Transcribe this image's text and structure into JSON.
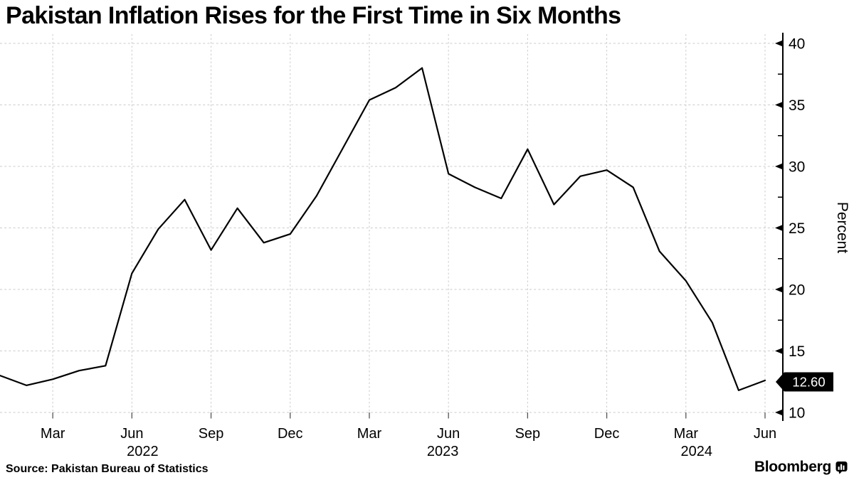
{
  "title": "Pakistan Inflation Rises for the First Time in Six Months",
  "source": "Source: Pakistan Bureau of Statistics",
  "branding": {
    "wordmark": "Bloomberg",
    "icon": "bar-chart-bubble-icon"
  },
  "chart_data": {
    "type": "line",
    "title": "Pakistan Inflation Rises for the First Time in Six Months",
    "xlabel": "",
    "ylabel": "Percent",
    "ylim": [
      10,
      40
    ],
    "yticks": [
      10,
      15,
      20,
      25,
      30,
      35,
      40
    ],
    "y_minor_tick_step": 2.5,
    "grid": true,
    "legend_position": "none",
    "line_color": "#000000",
    "grid_color": "#cbcbcb",
    "tag_bg": "#000000",
    "tag_text_color": "#ffffff",
    "x": [
      "Jan 2022",
      "Feb 2022",
      "Mar 2022",
      "Apr 2022",
      "May 2022",
      "Jun 2022",
      "Jul 2022",
      "Aug 2022",
      "Sep 2022",
      "Oct 2022",
      "Nov 2022",
      "Dec 2022",
      "Jan 2023",
      "Feb 2023",
      "Mar 2023",
      "Apr 2023",
      "May 2023",
      "Jun 2023",
      "Jul 2023",
      "Aug 2023",
      "Sep 2023",
      "Oct 2023",
      "Nov 2023",
      "Dec 2023",
      "Jan 2024",
      "Feb 2024",
      "Mar 2024",
      "Apr 2024",
      "May 2024",
      "Jun 2024"
    ],
    "values": [
      13.0,
      12.2,
      12.7,
      13.4,
      13.8,
      21.3,
      24.9,
      27.3,
      23.2,
      26.6,
      23.8,
      24.5,
      27.6,
      31.5,
      35.4,
      36.4,
      38.0,
      29.4,
      28.3,
      27.4,
      31.4,
      26.9,
      29.2,
      29.7,
      28.3,
      23.1,
      20.7,
      17.3,
      11.8,
      12.6
    ],
    "xticks": [
      {
        "index": 2,
        "label": "Mar"
      },
      {
        "index": 5,
        "label": "Jun",
        "year": "2022"
      },
      {
        "index": 8,
        "label": "Sep"
      },
      {
        "index": 11,
        "label": "Dec"
      },
      {
        "index": 14,
        "label": "Mar"
      },
      {
        "index": 17,
        "label": "Jun",
        "year": "2023"
      },
      {
        "index": 20,
        "label": "Sep"
      },
      {
        "index": 23,
        "label": "Dec"
      },
      {
        "index": 26,
        "label": "Mar",
        "year": "2024"
      },
      {
        "index": 29,
        "label": "Jun"
      }
    ],
    "last_point_label": "12.60"
  }
}
